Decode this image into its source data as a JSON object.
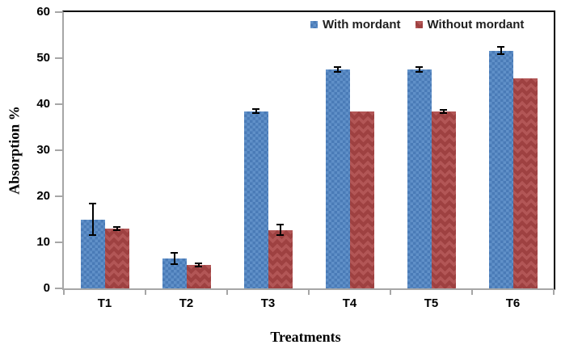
{
  "chart_data": {
    "type": "bar",
    "title": "",
    "xlabel": "Treatments",
    "ylabel": "Absorption %",
    "categories": [
      "T1",
      "T2",
      "T3",
      "T4",
      "T5",
      "T6"
    ],
    "series": [
      {
        "name": "With mordant",
        "color": "#6090c8",
        "pattern_color": "#4a7bb7",
        "pattern": "dotted-squares",
        "values": [
          15.0,
          6.5,
          38.5,
          47.5,
          47.5,
          51.6
        ],
        "errors": [
          3.5,
          1.3,
          0.4,
          0.5,
          0.5,
          0.8
        ]
      },
      {
        "name": "Without mordant",
        "color": "#9e4141",
        "pattern_color": "#b25656",
        "pattern": "diamond-checker",
        "values": [
          13.0,
          5.1,
          12.7,
          38.5,
          38.4,
          45.6
        ],
        "errors": [
          0.4,
          0.3,
          1.1,
          0,
          0.4,
          0
        ]
      }
    ],
    "ylim": [
      0,
      60
    ],
    "yticks": [
      0,
      10,
      20,
      30,
      40,
      50,
      60
    ],
    "grid": false,
    "legend_position": "top-right-inside",
    "error_bar_color": "#000000",
    "axis_line_color": "#a6a6a6",
    "plot_border_color": "#000000"
  }
}
